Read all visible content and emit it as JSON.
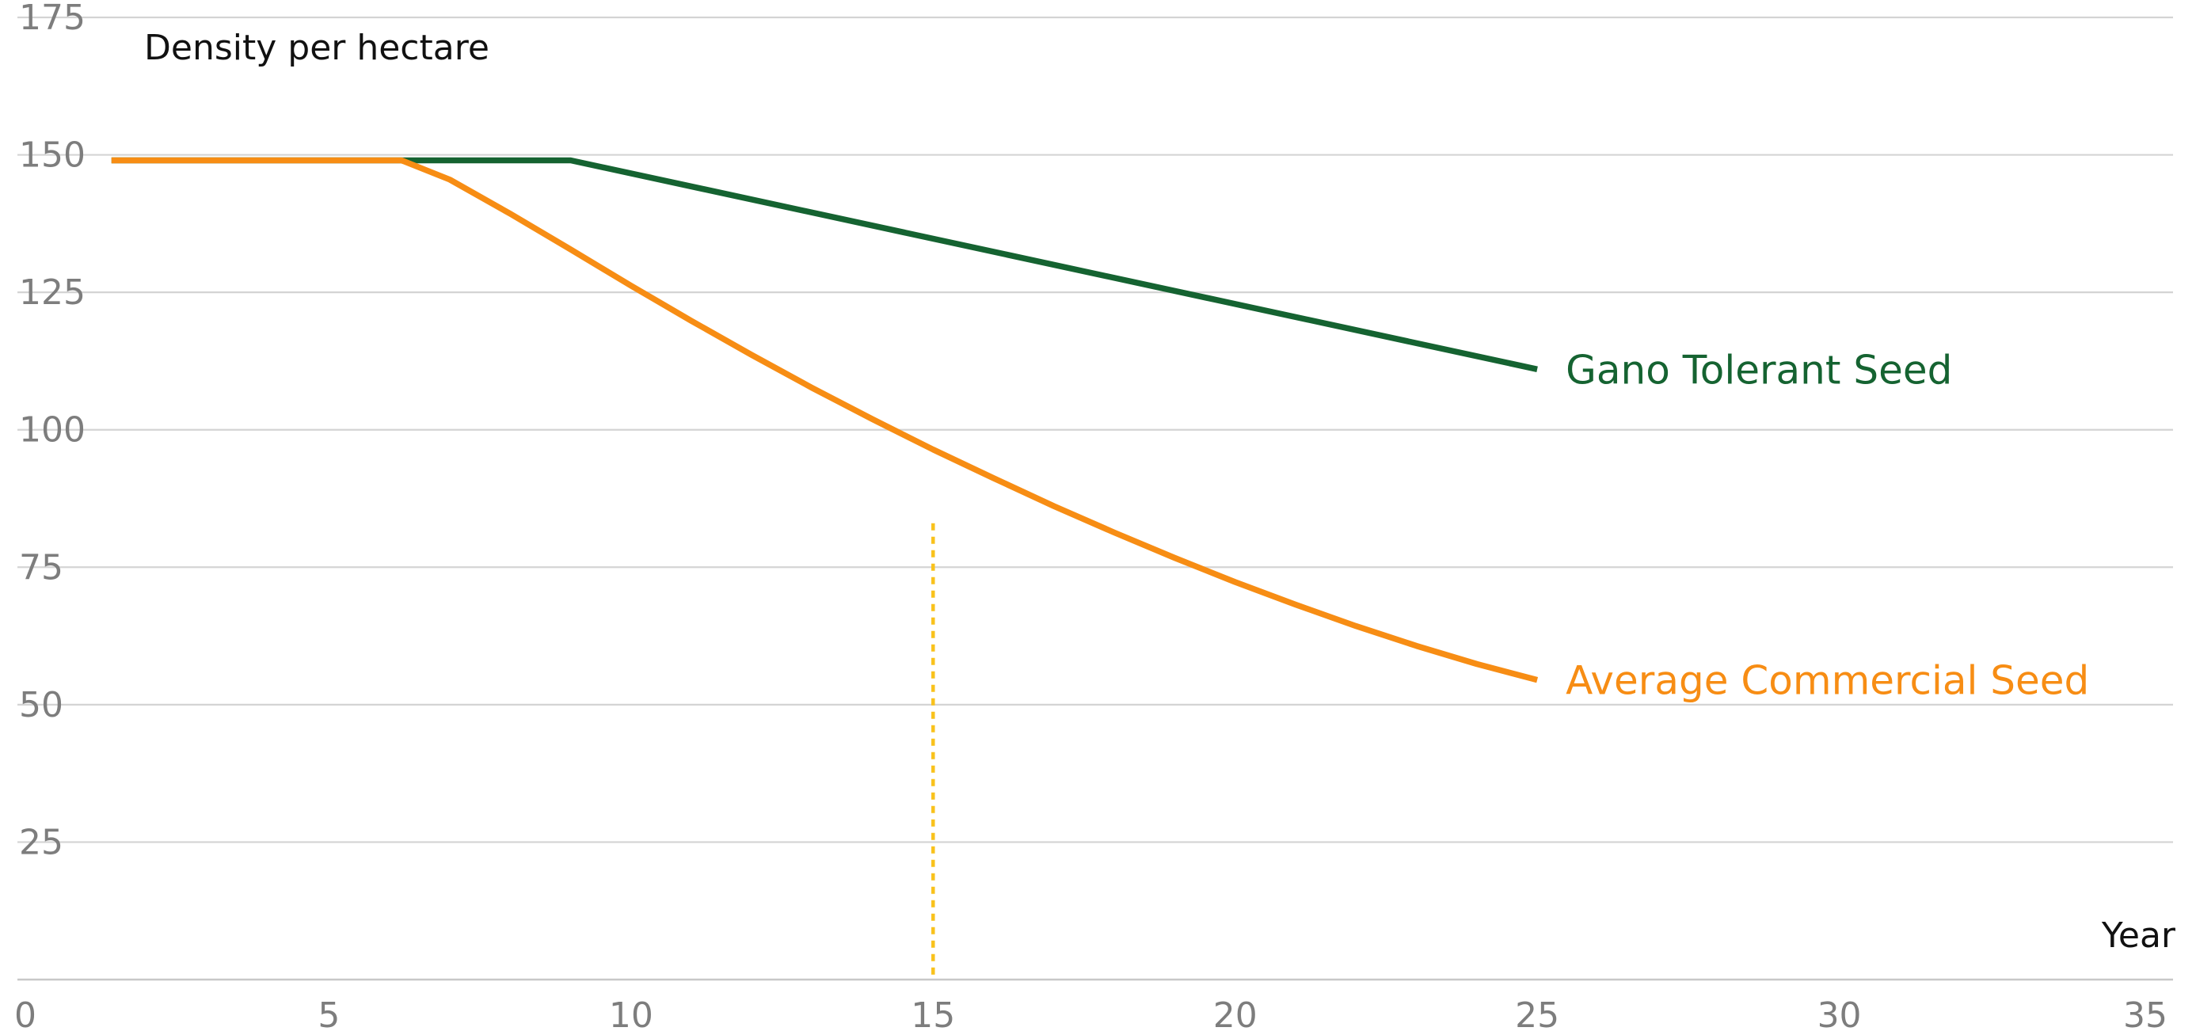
{
  "chart_data": {
    "type": "line",
    "ylabel": "Density per hectare",
    "xlabel": "Year",
    "xlim": [
      0,
      35
    ],
    "ylim": [
      0,
      175
    ],
    "x_ticks": [
      "0",
      "5",
      "10",
      "15",
      "20",
      "25",
      "30",
      "35"
    ],
    "y_ticks": [
      "25",
      "50",
      "75",
      "100",
      "125",
      "150",
      "175"
    ],
    "grid": true,
    "series": [
      {
        "name": "Gano Tolerant Seed",
        "color": "#156331",
        "points": [
          [
            1.4,
            149
          ],
          [
            9,
            149
          ],
          [
            25,
            111
          ]
        ]
      },
      {
        "name": "Average Commercial Seed",
        "color": "#f78d14",
        "points": [
          [
            1.4,
            149
          ],
          [
            6.2,
            149
          ],
          [
            7,
            145.5
          ],
          [
            8,
            139.3
          ],
          [
            9,
            132.8
          ],
          [
            10,
            126.2
          ],
          [
            11,
            119.8
          ],
          [
            12,
            113.6
          ],
          [
            13,
            107.6
          ],
          [
            14,
            101.9
          ],
          [
            15,
            96.4
          ],
          [
            16,
            91.2
          ],
          [
            17,
            86.1
          ],
          [
            18,
            81.3
          ],
          [
            19,
            76.7
          ],
          [
            20,
            72.3
          ],
          [
            21,
            68.2
          ],
          [
            22,
            64.3
          ],
          [
            23,
            60.7
          ],
          [
            24,
            57.4
          ],
          [
            25,
            54.5
          ]
        ]
      }
    ],
    "reference_line": {
      "x": 15,
      "y_top": 83,
      "color": "#f9c21c",
      "style": "dotted"
    }
  }
}
